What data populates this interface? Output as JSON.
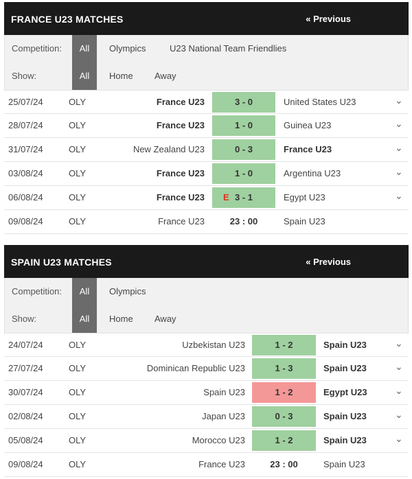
{
  "france": {
    "title": "FRANCE U23 MATCHES",
    "previous": "« Previous",
    "competition_label": "Competition:",
    "competition_options": [
      "All",
      "Olympics",
      "U23 National Team Friendlies"
    ],
    "show_label": "Show:",
    "show_options": [
      "All",
      "Home",
      "Away"
    ],
    "matches": [
      {
        "date": "25/07/24",
        "comp": "OLY",
        "home": "France U23",
        "score": "3 - 0",
        "away": "United States U23",
        "result": "win",
        "bold": "home",
        "extra": ""
      },
      {
        "date": "28/07/24",
        "comp": "OLY",
        "home": "France U23",
        "score": "1 - 0",
        "away": "Guinea U23",
        "result": "win",
        "bold": "home",
        "extra": ""
      },
      {
        "date": "31/07/24",
        "comp": "OLY",
        "home": "New Zealand U23",
        "score": "0 - 3",
        "away": "France U23",
        "result": "win",
        "bold": "away",
        "extra": ""
      },
      {
        "date": "03/08/24",
        "comp": "OLY",
        "home": "France U23",
        "score": "1 - 0",
        "away": "Argentina U23",
        "result": "win",
        "bold": "home",
        "extra": ""
      },
      {
        "date": "06/08/24",
        "comp": "OLY",
        "home": "France U23",
        "score": "3 - 1",
        "away": "Egypt U23",
        "result": "win",
        "bold": "home",
        "extra": "E"
      },
      {
        "date": "09/08/24",
        "comp": "OLY",
        "home": "France U23",
        "score": "23 : 00",
        "away": "Spain U23",
        "result": "none",
        "bold": "",
        "extra": ""
      }
    ]
  },
  "spain": {
    "title": "SPAIN U23 MATCHES",
    "previous": "« Previous",
    "competition_label": "Competition:",
    "competition_options": [
      "All",
      "Olympics"
    ],
    "show_label": "Show:",
    "show_options": [
      "All",
      "Home",
      "Away"
    ],
    "matches": [
      {
        "date": "24/07/24",
        "comp": "OLY",
        "home": "Uzbekistan U23",
        "score": "1 - 2",
        "away": "Spain U23",
        "result": "win",
        "bold": "away",
        "extra": ""
      },
      {
        "date": "27/07/24",
        "comp": "OLY",
        "home": "Dominican Republic U23",
        "score": "1 - 3",
        "away": "Spain U23",
        "result": "win",
        "bold": "away",
        "extra": ""
      },
      {
        "date": "30/07/24",
        "comp": "OLY",
        "home": "Spain U23",
        "score": "1 - 2",
        "away": "Egypt U23",
        "result": "loss",
        "bold": "away",
        "extra": ""
      },
      {
        "date": "02/08/24",
        "comp": "OLY",
        "home": "Japan U23",
        "score": "0 - 3",
        "away": "Spain U23",
        "result": "win",
        "bold": "away",
        "extra": ""
      },
      {
        "date": "05/08/24",
        "comp": "OLY",
        "home": "Morocco U23",
        "score": "1 - 2",
        "away": "Spain U23",
        "result": "win",
        "bold": "away",
        "extra": ""
      },
      {
        "date": "09/08/24",
        "comp": "OLY",
        "home": "France U23",
        "score": "23 : 00",
        "away": "Spain U23",
        "result": "none",
        "bold": "",
        "extra": ""
      }
    ]
  },
  "icons": {
    "expand": "chevron-down-icon"
  },
  "colors": {
    "header_bg": "#1a1a1a",
    "win": "#9fd09f",
    "loss": "#f49797",
    "active_filter": "#6b6b6b",
    "extra_time": "#e0301e"
  }
}
